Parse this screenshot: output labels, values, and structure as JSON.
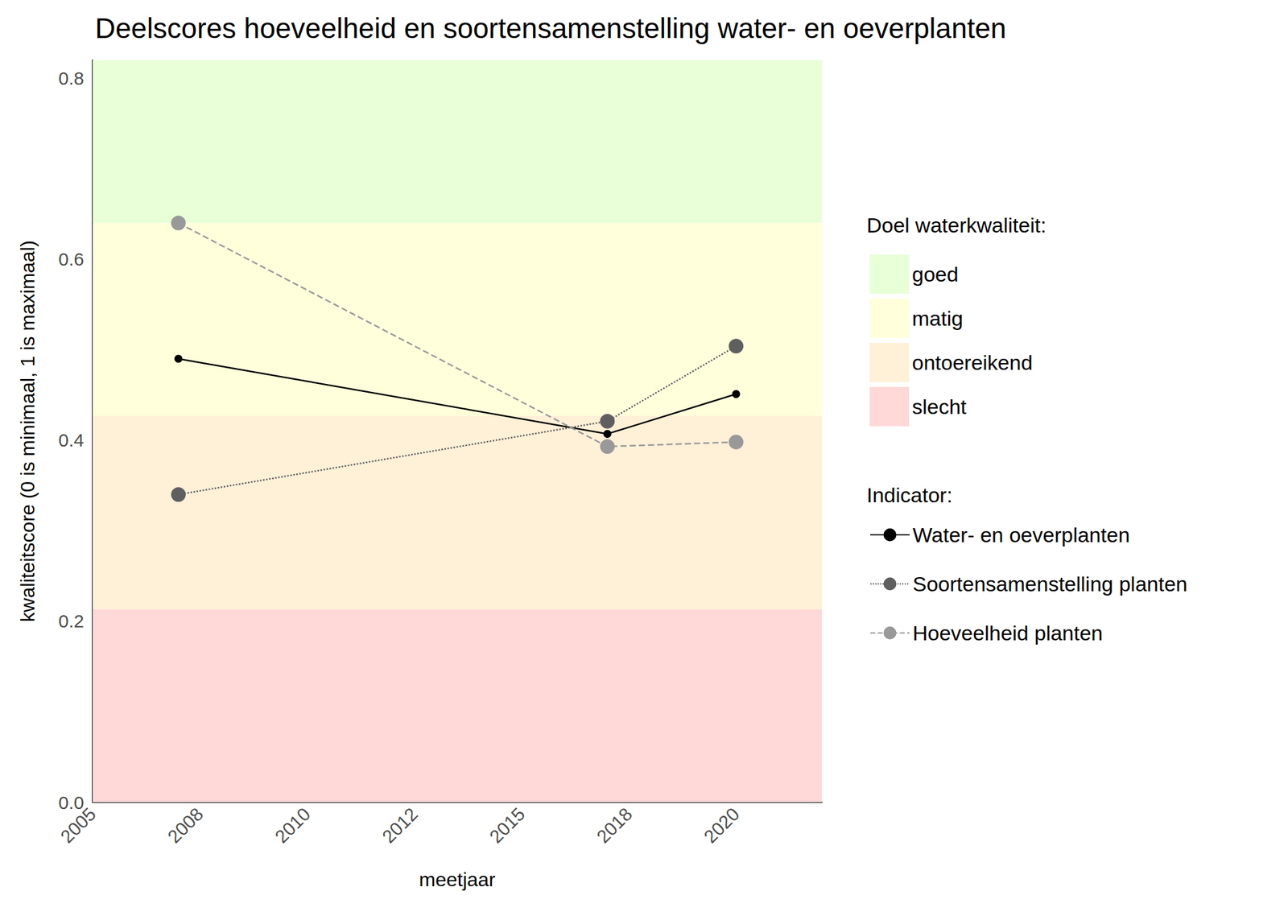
{
  "chart_data": {
    "type": "line",
    "title": "Deelscores hoeveelheid en soortensamenstelling water- en oeverplanten",
    "x_label": "meetjaar",
    "y_label": "kwaliteitscore (0 is minimaal, 1 is maximaal)",
    "x": [
      2007,
      2017,
      2020
    ],
    "xlim": [
      2005,
      2022
    ],
    "xticks": [
      2005,
      {
        "value": 2007.5,
        "label": "2008"
      },
      2010,
      {
        "value": 2012.5,
        "label": "2012"
      },
      2015,
      {
        "value": 2017.5,
        "label": "2018"
      },
      2020
    ],
    "ylim": [
      0,
      0.82
    ],
    "yticks": [
      {
        "value": 0,
        "label": "0.0"
      },
      0.2,
      0.4,
      0.6,
      0.8
    ],
    "grid": true,
    "legend": "right",
    "bands_title": "Doel waterkwaliteit:",
    "bands": [
      {
        "name": "goed",
        "from": 0.64,
        "to": 0.82,
        "color": "#e8ffd8"
      },
      {
        "name": "matig",
        "from": 0.427,
        "to": 0.64,
        "color": "#ffffdc"
      },
      {
        "name": "ontoereikend",
        "from": 0.213,
        "to": 0.427,
        "color": "#fff0d8"
      },
      {
        "name": "slecht",
        "from": 0,
        "to": 0.213,
        "color": "#ffd8d8"
      }
    ],
    "series_title": "Indicator:",
    "series": [
      {
        "name": "Water- en oeverplanten",
        "color": "#000000",
        "line_style": "solid",
        "marker": "circle",
        "values": [
          0.49,
          0.407,
          0.451
        ]
      },
      {
        "name": "Soortensamenstelling planten",
        "color": "#5f5f5f",
        "line_style": "dotted",
        "marker": "circle",
        "values": [
          0.34,
          0.421,
          0.504
        ]
      },
      {
        "name": "Hoeveelheid planten",
        "color": "#999999",
        "line_style": "dashed",
        "marker": "circle",
        "values": [
          0.64,
          0.393,
          0.398
        ]
      }
    ]
  }
}
